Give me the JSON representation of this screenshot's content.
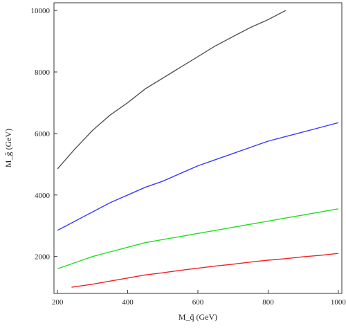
{
  "chart_data": {
    "type": "line",
    "xlabel": "M_q̃ (GeV)",
    "ylabel": "M_g̃ (GeV)",
    "xlim": [
      190,
      1010
    ],
    "ylim": [
      800,
      10250
    ],
    "xticks": [
      200,
      400,
      600,
      800,
      1000
    ],
    "yticks": [
      2000,
      4000,
      6000,
      8000,
      10000
    ],
    "grid": false,
    "series": [
      {
        "color": "#555555",
        "x": [
          200,
          250,
          300,
          350,
          400,
          450,
          500,
          550,
          600,
          650,
          700,
          750,
          800,
          850
        ],
        "values": [
          4850,
          5500,
          6100,
          6600,
          7000,
          7450,
          7800,
          8150,
          8500,
          8850,
          9150,
          9450,
          9700,
          10000
        ]
      },
      {
        "color": "#3a3aff",
        "x": [
          200,
          250,
          300,
          350,
          400,
          450,
          500,
          550,
          600,
          650,
          700,
          750,
          800,
          850,
          900,
          950,
          1000
        ],
        "values": [
          2850,
          3150,
          3450,
          3750,
          4000,
          4250,
          4450,
          4700,
          4950,
          5150,
          5350,
          5550,
          5750,
          5900,
          6050,
          6200,
          6350
        ]
      },
      {
        "color": "#22dd22",
        "x": [
          200,
          250,
          300,
          350,
          400,
          450,
          500,
          550,
          600,
          650,
          700,
          750,
          800,
          850,
          900,
          950,
          1000
        ],
        "values": [
          1600,
          1800,
          2000,
          2150,
          2300,
          2450,
          2550,
          2650,
          2750,
          2850,
          2950,
          3050,
          3150,
          3250,
          3350,
          3450,
          3550
        ]
      },
      {
        "color": "#ee2222",
        "x": [
          240,
          300,
          350,
          400,
          450,
          500,
          550,
          600,
          650,
          700,
          750,
          800,
          850,
          900,
          950,
          1000
        ],
        "values": [
          1000,
          1100,
          1200,
          1300,
          1400,
          1470,
          1550,
          1620,
          1690,
          1750,
          1820,
          1880,
          1930,
          1990,
          2040,
          2100
        ]
      }
    ]
  }
}
